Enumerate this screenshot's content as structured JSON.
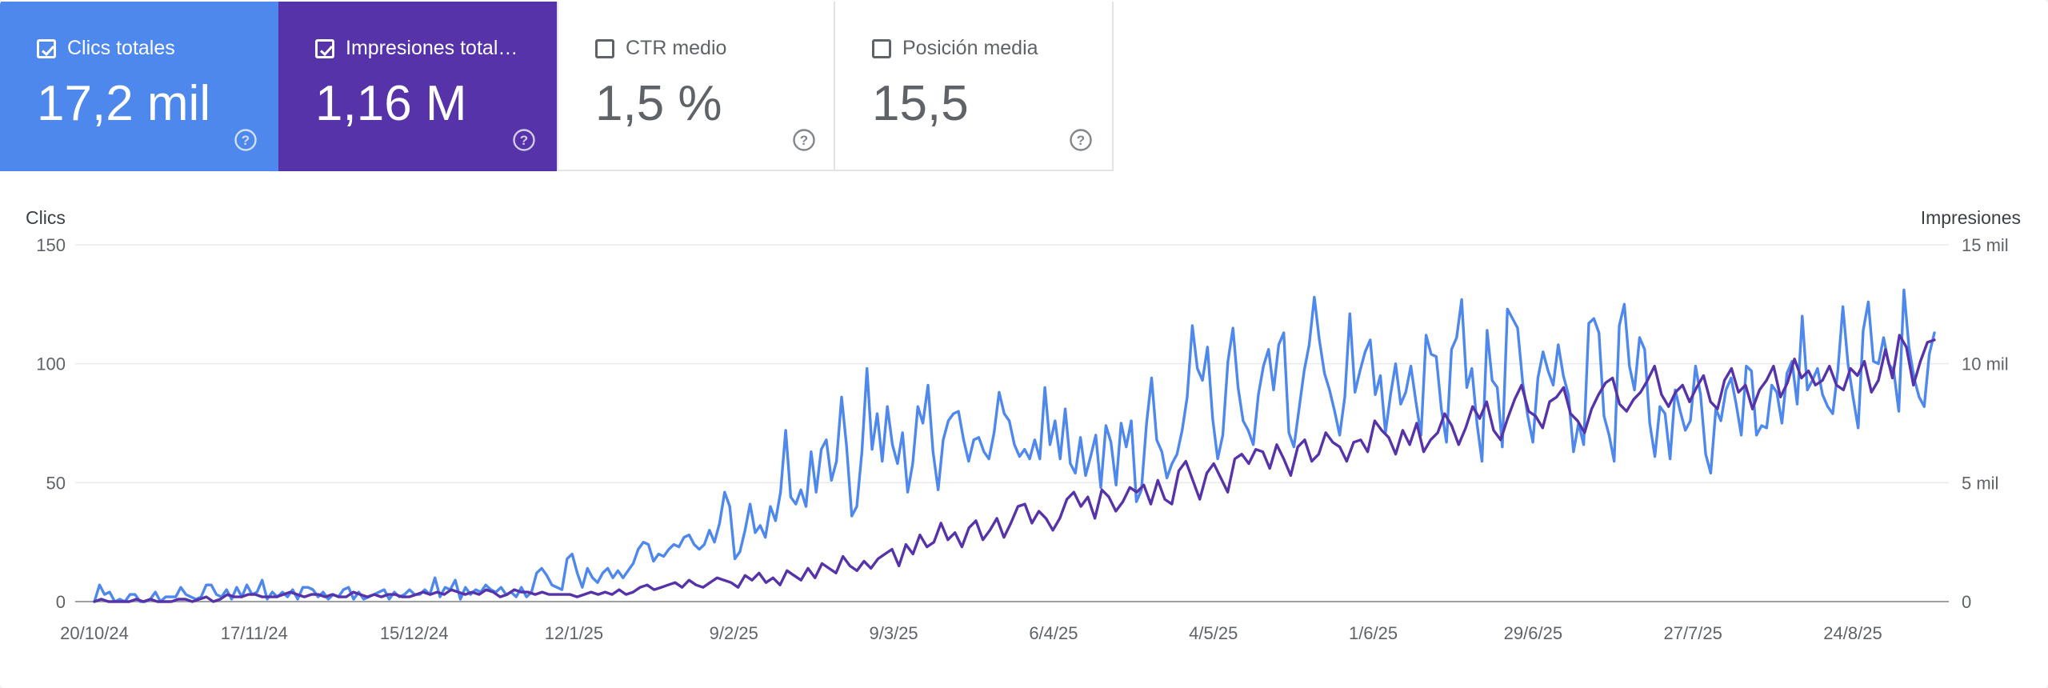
{
  "metrics": [
    {
      "label": "Clics totales",
      "value": "17,2 mil",
      "selected": true,
      "color": "#4e88ec"
    },
    {
      "label": "Impresiones total…",
      "value": "1,16 M",
      "selected": true,
      "color": "#5633a8"
    },
    {
      "label": "CTR medio",
      "value": "1,5 %",
      "selected": false
    },
    {
      "label": "Posición media",
      "value": "15,5",
      "selected": false
    }
  ],
  "chart_data": {
    "type": "line",
    "left_axis_title": "Clics",
    "right_axis_title": "Impresiones",
    "left_ticks": [
      "0",
      "50",
      "100",
      "150"
    ],
    "right_ticks": [
      "0",
      "5 mil",
      "10 mil",
      "15 mil"
    ],
    "left_ylim": [
      0,
      150
    ],
    "right_ylim": [
      0,
      15000
    ],
    "x_tick_labels": [
      "20/10/24",
      "17/11/24",
      "15/12/24",
      "12/1/25",
      "9/2/25",
      "9/3/25",
      "6/4/25",
      "4/5/25",
      "1/6/25",
      "29/6/25",
      "27/7/25",
      "24/8/25"
    ],
    "series": [
      {
        "name": "Clics totales",
        "axis": "left",
        "color": "#4e88ec",
        "values": [
          0,
          7,
          3,
          4,
          0,
          1,
          0,
          3,
          3,
          0,
          0,
          1,
          4,
          0,
          2,
          2,
          2,
          6,
          3,
          2,
          1,
          2,
          7,
          7,
          3,
          2,
          5,
          1,
          6,
          2,
          7,
          3,
          4,
          9,
          1,
          4,
          2,
          4,
          2,
          5,
          1,
          6,
          6,
          5,
          2,
          4,
          1,
          3,
          2,
          5,
          6,
          1,
          4,
          1,
          2,
          3,
          4,
          5,
          1,
          4,
          2,
          3,
          5,
          3,
          3,
          5,
          3,
          10,
          2,
          6,
          5,
          9,
          1,
          6,
          3,
          5,
          4,
          7,
          5,
          4,
          6,
          3,
          4,
          2,
          6,
          2,
          4,
          12,
          14,
          11,
          7,
          6,
          5,
          18,
          20,
          12,
          6,
          14,
          10,
          8,
          12,
          14,
          10,
          13,
          10,
          13,
          16,
          22,
          25,
          24,
          17,
          20,
          19,
          22,
          24,
          23,
          27,
          28,
          24,
          22,
          24,
          30,
          25,
          33,
          46,
          40,
          18,
          21,
          30,
          41,
          29,
          32,
          27,
          40,
          34,
          46,
          72,
          44,
          41,
          47,
          40,
          63,
          46,
          64,
          68,
          51,
          59,
          86,
          65,
          36,
          40,
          63,
          98,
          64,
          79,
          59,
          82,
          66,
          58,
          71,
          46,
          58,
          82,
          75,
          91,
          63,
          47,
          68,
          76,
          79,
          80,
          68,
          59,
          68,
          69,
          63,
          60,
          71,
          88,
          79,
          76,
          66,
          61,
          64,
          60,
          68,
          60,
          90,
          66,
          76,
          60,
          81,
          58,
          54,
          69,
          53,
          61,
          70,
          48,
          74,
          67,
          49,
          75,
          65,
          76,
          42,
          47,
          75,
          94,
          68,
          63,
          52,
          58,
          62,
          72,
          86,
          116,
          98,
          93,
          107,
          77,
          60,
          70,
          101,
          115,
          90,
          76,
          72,
          66,
          87,
          99,
          106,
          89,
          108,
          113,
          71,
          65,
          81,
          97,
          108,
          128,
          110,
          96,
          89,
          80,
          70,
          86,
          121,
          88,
          97,
          105,
          110,
          87,
          95,
          71,
          87,
          100,
          83,
          88,
          99,
          84,
          70,
          112,
          104,
          103,
          81,
          67,
          106,
          111,
          127,
          90,
          98,
          75,
          59,
          114,
          93,
          90,
          65,
          123,
          119,
          115,
          92,
          78,
          67,
          94,
          105,
          97,
          91,
          108,
          95,
          87,
          63,
          75,
          66,
          117,
          119,
          113,
          78,
          70,
          59,
          116,
          125,
          99,
          89,
          111,
          106,
          75,
          61,
          82,
          79,
          60,
          89,
          80,
          72,
          76,
          99,
          87,
          62,
          54,
          81,
          76,
          89,
          94,
          83,
          70,
          99,
          97,
          70,
          74,
          73,
          91,
          88,
          75,
          96,
          101,
          83,
          120,
          89,
          93,
          98,
          87,
          82,
          79,
          97,
          124,
          100,
          86,
          73,
          114,
          126,
          101,
          100,
          111,
          100,
          97,
          80,
          131,
          107,
          94,
          86,
          82,
          104,
          113
        ]
      },
      {
        "name": "Impresiones totales",
        "axis": "right",
        "color": "#5633a8",
        "values": [
          0,
          100,
          0,
          0,
          0,
          0,
          100,
          0,
          100,
          0,
          0,
          0,
          100,
          100,
          0,
          100,
          200,
          0,
          100,
          300,
          200,
          200,
          300,
          300,
          200,
          200,
          200,
          300,
          400,
          300,
          200,
          300,
          300,
          200,
          300,
          200,
          200,
          400,
          300,
          200,
          300,
          200,
          300,
          300,
          200,
          200,
          300,
          400,
          300,
          400,
          300,
          500,
          400,
          300,
          400,
          300,
          500,
          400,
          200,
          300,
          500,
          400,
          400,
          300,
          400,
          300,
          300,
          300,
          300,
          200,
          300,
          400,
          300,
          400,
          300,
          500,
          300,
          400,
          600,
          700,
          500,
          600,
          700,
          800,
          600,
          900,
          700,
          600,
          800,
          1000,
          900,
          800,
          600,
          1100,
          900,
          1200,
          800,
          1000,
          700,
          1300,
          1100,
          900,
          1400,
          1000,
          1600,
          1400,
          1200,
          1900,
          1500,
          1300,
          1700,
          1400,
          1800,
          2000,
          2200,
          1500,
          2400,
          2000,
          2800,
          2300,
          2500,
          3300,
          2600,
          2900,
          2300,
          3100,
          3400,
          2600,
          3000,
          3500,
          2700,
          3300,
          4000,
          4100,
          3300,
          3800,
          3500,
          3000,
          3500,
          4300,
          4600,
          4000,
          4400,
          3500,
          4700,
          4400,
          3800,
          4200,
          4800,
          4600,
          4900,
          4100,
          5100,
          4300,
          4100,
          5500,
          5900,
          5100,
          4300,
          5400,
          5800,
          5200,
          4600,
          6000,
          6200,
          5800,
          6400,
          6300,
          5600,
          6600,
          6000,
          5300,
          6500,
          6800,
          5900,
          6200,
          7100,
          6700,
          6500,
          5900,
          6700,
          6800,
          6300,
          7600,
          7200,
          6900,
          6200,
          7200,
          6600,
          7500,
          6300,
          6800,
          7100,
          7900,
          7400,
          6600,
          7300,
          8200,
          7700,
          8400,
          7200,
          6800,
          7700,
          8500,
          9100,
          8000,
          7800,
          7300,
          8400,
          8600,
          9000,
          7900,
          7600,
          7100,
          8100,
          8700,
          9200,
          9400,
          8300,
          8000,
          8500,
          8800,
          9300,
          9900,
          8700,
          8200,
          8800,
          9100,
          8400,
          9000,
          9500,
          8400,
          8100,
          9300,
          9800,
          8800,
          9100,
          8100,
          8900,
          9300,
          9900,
          8600,
          9200,
          10200,
          9400,
          9700,
          9100,
          9300,
          9900,
          9100,
          8900,
          9800,
          9500,
          10100,
          8800,
          9300,
          10600,
          9400,
          11200,
          10700,
          9100,
          10100,
          10900,
          11000
        ]
      }
    ]
  }
}
